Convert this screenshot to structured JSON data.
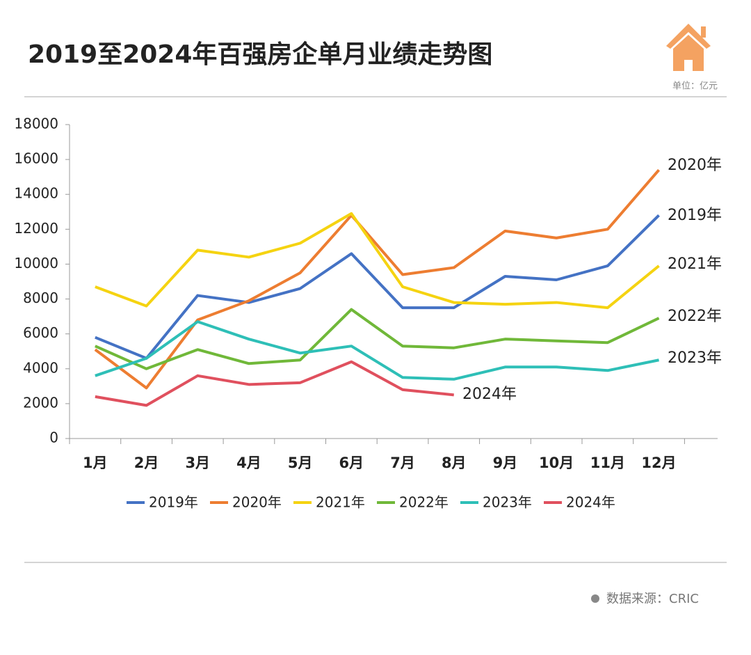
{
  "chart_data": {
    "type": "line",
    "title": "2019至2024年百强房企单月业绩走势图",
    "unit": "单位：亿元",
    "source": "数据来源：CRIC",
    "categories": [
      "1月",
      "2月",
      "3月",
      "4月",
      "5月",
      "6月",
      "7月",
      "8月",
      "9月",
      "10月",
      "11月",
      "12月"
    ],
    "series": [
      {
        "name": "2019年",
        "color": "#4472c4",
        "values": [
          5800,
          4600,
          8200,
          7800,
          8600,
          10600,
          7500,
          7500,
          9300,
          9100,
          9900,
          12800
        ]
      },
      {
        "name": "2020年",
        "color": "#ed7d31",
        "values": [
          5100,
          2900,
          6800,
          7900,
          9500,
          12800,
          9400,
          9800,
          11900,
          11500,
          12000,
          15400
        ]
      },
      {
        "name": "2021年",
        "color": "#f5d311",
        "values": [
          8700,
          7600,
          10800,
          10400,
          11200,
          12900,
          8700,
          7800,
          7700,
          7800,
          7500,
          9900
        ]
      },
      {
        "name": "2022年",
        "color": "#70b839",
        "values": [
          5300,
          4000,
          5100,
          4300,
          4500,
          7400,
          5300,
          5200,
          5700,
          5600,
          5500,
          6900
        ]
      },
      {
        "name": "2023年",
        "color": "#2ebfb7",
        "values": [
          3600,
          4600,
          6700,
          5700,
          4900,
          5300,
          3500,
          3400,
          4100,
          4100,
          3900,
          4500
        ]
      },
      {
        "name": "2024年",
        "color": "#e0505e",
        "values": [
          2400,
          1900,
          3600,
          3100,
          3200,
          4400,
          2800,
          2500,
          null,
          null,
          null,
          null
        ]
      }
    ],
    "ylim": [
      0,
      18000
    ],
    "yticks": [
      0,
      2000,
      4000,
      6000,
      8000,
      10000,
      12000,
      14000,
      16000,
      18000
    ],
    "legend": "bottom"
  }
}
